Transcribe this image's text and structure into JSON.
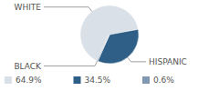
{
  "chart_data": {
    "type": "pie",
    "categories": [
      "WHITE",
      "HISPANIC",
      "BLACK"
    ],
    "values": [
      64.9,
      34.5,
      0.6
    ],
    "value_labels": [
      "64.9%",
      "34.5%",
      "0.6%"
    ],
    "colors": [
      "#d9e0e8",
      "#2f5f86",
      "#7f9ab0"
    ],
    "legend": "bottom"
  }
}
